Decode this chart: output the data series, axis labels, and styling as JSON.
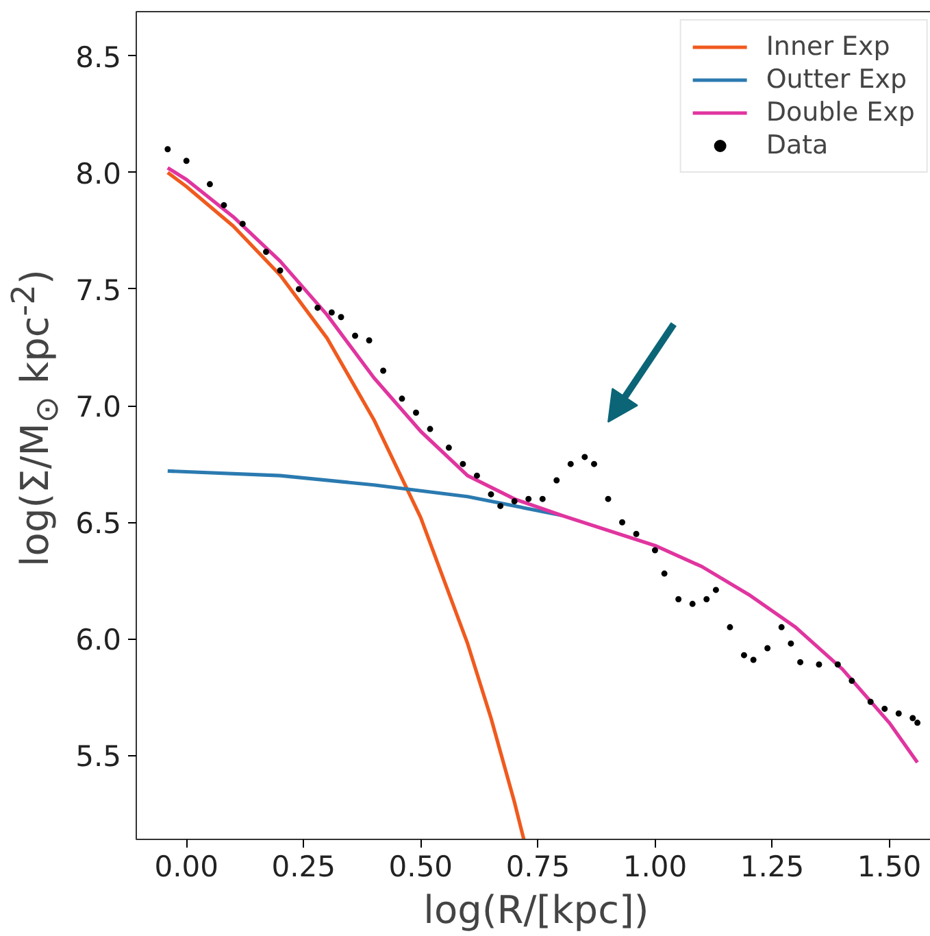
{
  "chart_data": {
    "type": "line",
    "xlabel": "log(R/[kpc])",
    "ylabel": "log(Σ/M$_{⊙}$ kpc$^{-2}$)",
    "xlim": [
      -0.107,
      1.6
    ],
    "ylim": [
      5.14,
      8.69
    ],
    "xticks": [
      {
        "value": 0,
        "label": "0.00"
      },
      0.25,
      {
        "value": 0.5,
        "label": "0.50"
      },
      0.75,
      {
        "value": 1,
        "label": "1.00"
      },
      1.25,
      {
        "value": 1.5,
        "label": "1.50"
      }
    ],
    "yticks": [
      {
        "value": 5.5,
        "label": "5.5"
      },
      {
        "value": 6,
        "label": "6.0"
      },
      {
        "value": 6.5,
        "label": "6.5"
      },
      {
        "value": 7,
        "label": "7.0"
      },
      {
        "value": 7.5,
        "label": "7.5"
      },
      {
        "value": 8,
        "label": "8.0"
      },
      {
        "value": 8.5,
        "label": "8.5"
      }
    ],
    "grid": false,
    "legend": "top right",
    "series": [
      {
        "name": "Inner Exp",
        "color": "#f05a1e",
        "x": [
          -0.04,
          0.0,
          0.1,
          0.2,
          0.3,
          0.4,
          0.5,
          0.6,
          0.65,
          0.7,
          0.72
        ],
        "values": [
          8.0,
          7.94,
          7.77,
          7.56,
          7.29,
          6.94,
          6.52,
          5.98,
          5.66,
          5.3,
          5.14
        ]
      },
      {
        "name": "Outter Exp",
        "color": "#2a7ab0",
        "x": [
          -0.04,
          0.2,
          0.4,
          0.6,
          0.8
        ],
        "values": [
          6.72,
          6.7,
          6.66,
          6.61,
          6.53
        ]
      },
      {
        "name": "Double Exp",
        "color": "#e0359f",
        "x": [
          -0.04,
          0.0,
          0.1,
          0.2,
          0.3,
          0.4,
          0.5,
          0.6,
          0.7,
          0.8,
          1.0,
          1.1,
          1.2,
          1.3,
          1.4,
          1.5,
          1.56
        ],
        "values": [
          8.02,
          7.97,
          7.81,
          7.62,
          7.39,
          7.12,
          6.89,
          6.7,
          6.6,
          6.53,
          6.4,
          6.31,
          6.19,
          6.05,
          5.87,
          5.64,
          5.47
        ]
      },
      {
        "name": "Data",
        "type": "scatter",
        "marker": "circle",
        "color": "#000000",
        "x": [
          -0.04,
          0.0,
          0.05,
          0.08,
          0.12,
          0.17,
          0.2,
          0.24,
          0.28,
          0.31,
          0.33,
          0.36,
          0.39,
          0.42,
          0.46,
          0.49,
          0.52,
          0.56,
          0.59,
          0.62,
          0.65,
          0.67,
          0.7,
          0.73,
          0.76,
          0.79,
          0.82,
          0.85,
          0.87,
          0.9,
          0.93,
          0.96,
          1.0,
          1.02,
          1.05,
          1.08,
          1.11,
          1.13,
          1.16,
          1.19,
          1.21,
          1.24,
          1.27,
          1.29,
          1.31,
          1.35,
          1.39,
          1.42,
          1.46,
          1.49,
          1.52,
          1.55,
          1.56
        ],
        "values": [
          8.1,
          8.05,
          7.95,
          7.86,
          7.78,
          7.66,
          7.58,
          7.5,
          7.42,
          7.4,
          7.38,
          7.3,
          7.28,
          7.15,
          7.03,
          6.97,
          6.9,
          6.82,
          6.75,
          6.7,
          6.62,
          6.57,
          6.59,
          6.6,
          6.6,
          6.68,
          6.75,
          6.78,
          6.75,
          6.6,
          6.5,
          6.45,
          6.38,
          6.28,
          6.17,
          6.15,
          6.17,
          6.21,
          6.05,
          5.93,
          5.91,
          5.96,
          6.05,
          5.98,
          5.9,
          5.89,
          5.89,
          5.82,
          5.73,
          5.7,
          5.68,
          5.66,
          5.64
        ]
      }
    ]
  }
}
